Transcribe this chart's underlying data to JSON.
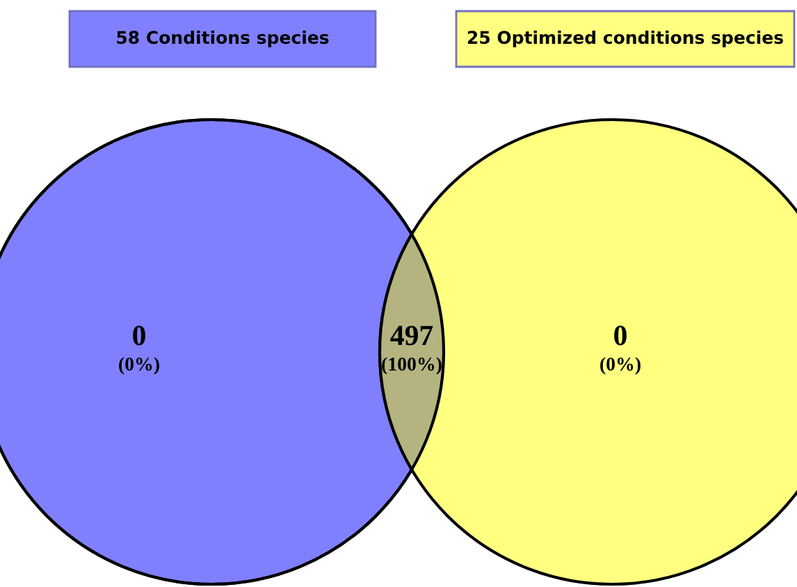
{
  "chart_data": {
    "type": "other",
    "categories": [
      null,
      null,
      null
    ],
    "values": [
      0,
      497,
      0
    ],
    "colors": [
      "#8080ff",
      "#b4b480",
      "#ffff80"
    ],
    "data_labels": true,
    "annotations": [
      "58 Conditions species",
      "25 Optimized conditions species",
      "(0%)",
      "(100%)",
      "(0%)"
    ]
  }
}
